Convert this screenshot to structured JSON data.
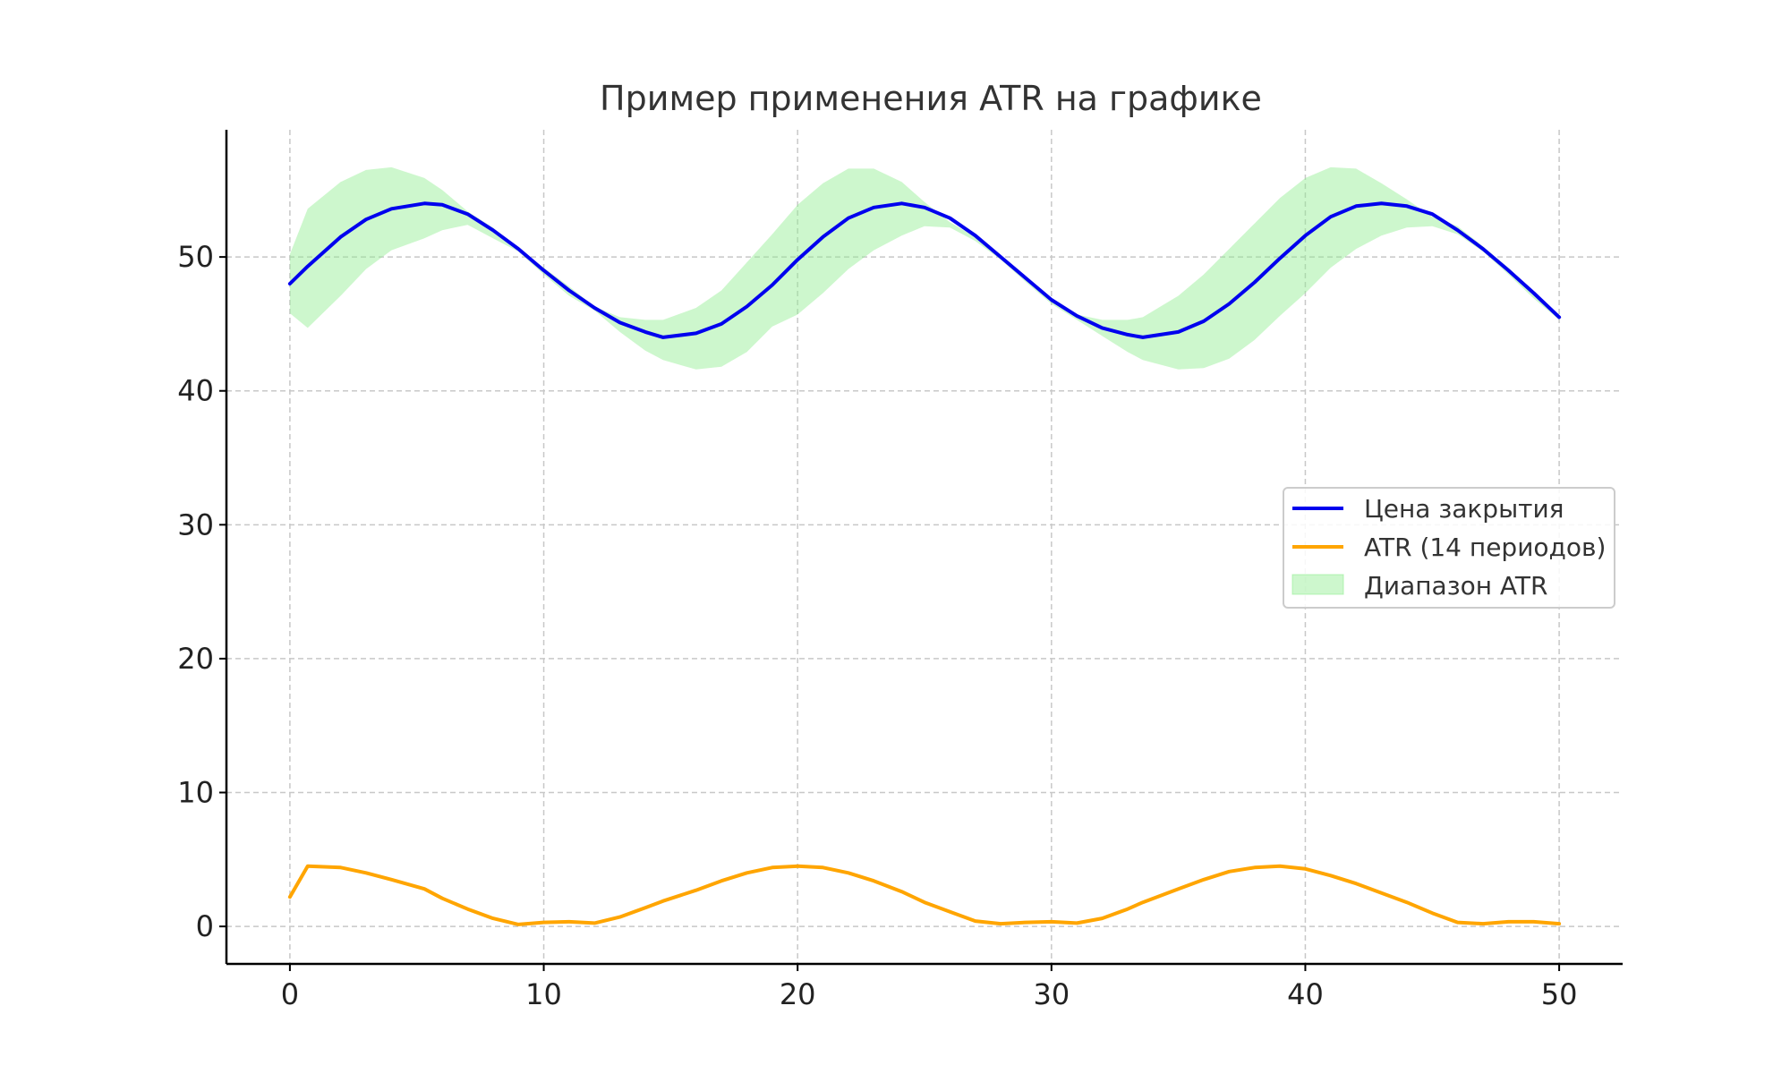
{
  "chart_data": {
    "type": "line",
    "title": "Пример применения ATR на графике",
    "xlabel": "",
    "ylabel": "",
    "xlim": [
      -2.5,
      52.5
    ],
    "ylim": [
      -2.8,
      59.5
    ],
    "xticks": [
      0,
      10,
      20,
      30,
      40,
      50
    ],
    "yticks": [
      0,
      10,
      20,
      30,
      40,
      50
    ],
    "grid": true,
    "legend_position": "center-right",
    "x": [
      0,
      0.7,
      2,
      3,
      4,
      5.3,
      6,
      7,
      8,
      9,
      10,
      11,
      12,
      13,
      14,
      14.7,
      16,
      17,
      18,
      19,
      20,
      21,
      22,
      23,
      24.1,
      25,
      26,
      27,
      28,
      29,
      30,
      31,
      32,
      33,
      33.6,
      35,
      36,
      37,
      38,
      39,
      40,
      41,
      42,
      43,
      44,
      45,
      46,
      47,
      48,
      49,
      50
    ],
    "series": [
      {
        "name": "Цена закрытия",
        "color": "#0000ee",
        "values": [
          48.0,
          49.3,
          51.5,
          52.8,
          53.6,
          54.0,
          53.9,
          53.2,
          52.0,
          50.6,
          49.0,
          47.5,
          46.2,
          45.1,
          44.4,
          44.0,
          44.3,
          45.0,
          46.3,
          47.9,
          49.8,
          51.5,
          52.9,
          53.7,
          54.0,
          53.7,
          52.9,
          51.6,
          50.0,
          48.4,
          46.8,
          45.6,
          44.7,
          44.2,
          44.0,
          44.4,
          45.2,
          46.5,
          48.1,
          49.9,
          51.6,
          53.0,
          53.8,
          54.0,
          53.8,
          53.2,
          52.0,
          50.6,
          49.0,
          47.3,
          45.5
        ]
      },
      {
        "name": "ATR (14 периодов)",
        "color": "#ffa500",
        "values": [
          2.2,
          4.5,
          4.4,
          4.0,
          3.5,
          2.8,
          2.1,
          1.3,
          0.6,
          0.15,
          0.3,
          0.35,
          0.25,
          0.7,
          1.4,
          1.9,
          2.7,
          3.4,
          4.0,
          4.4,
          4.5,
          4.4,
          4.0,
          3.4,
          2.6,
          1.8,
          1.1,
          0.4,
          0.2,
          0.3,
          0.35,
          0.25,
          0.6,
          1.3,
          1.8,
          2.8,
          3.5,
          4.1,
          4.4,
          4.5,
          4.3,
          3.8,
          3.2,
          2.5,
          1.8,
          1.0,
          0.3,
          0.2,
          0.35,
          0.35,
          0.2
        ]
      },
      {
        "name": "Диапазон ATR",
        "color": "#90ee90",
        "upper": [
          50.2,
          53.6,
          55.6,
          56.5,
          56.7,
          55.9,
          55.0,
          53.4,
          52.2,
          50.6,
          49.2,
          47.8,
          46.3,
          45.5,
          45.3,
          45.3,
          46.2,
          47.5,
          49.6,
          51.7,
          53.9,
          55.5,
          56.6,
          56.6,
          55.6,
          54.1,
          52.6,
          51.5,
          50.1,
          48.4,
          46.9,
          45.7,
          45.3,
          45.3,
          45.5,
          47.1,
          48.7,
          50.6,
          52.5,
          54.4,
          55.9,
          56.7,
          56.6,
          55.5,
          54.3,
          53.0,
          52.3,
          50.8,
          49.2,
          47.4,
          45.6
        ],
        "lower": [
          45.8,
          44.7,
          47.1,
          49.1,
          50.5,
          51.4,
          52.0,
          52.4,
          51.4,
          50.4,
          48.7,
          47.1,
          46.0,
          44.4,
          43.0,
          42.3,
          41.6,
          41.8,
          42.9,
          44.8,
          45.7,
          47.3,
          49.1,
          50.5,
          51.6,
          52.3,
          52.2,
          51.2,
          49.8,
          48.1,
          46.5,
          45.3,
          44.1,
          42.9,
          42.3,
          41.6,
          41.7,
          42.4,
          43.8,
          45.6,
          47.3,
          49.2,
          50.6,
          51.6,
          52.2,
          52.3,
          51.7,
          50.4,
          48.7,
          46.9,
          45.3
        ]
      }
    ]
  }
}
